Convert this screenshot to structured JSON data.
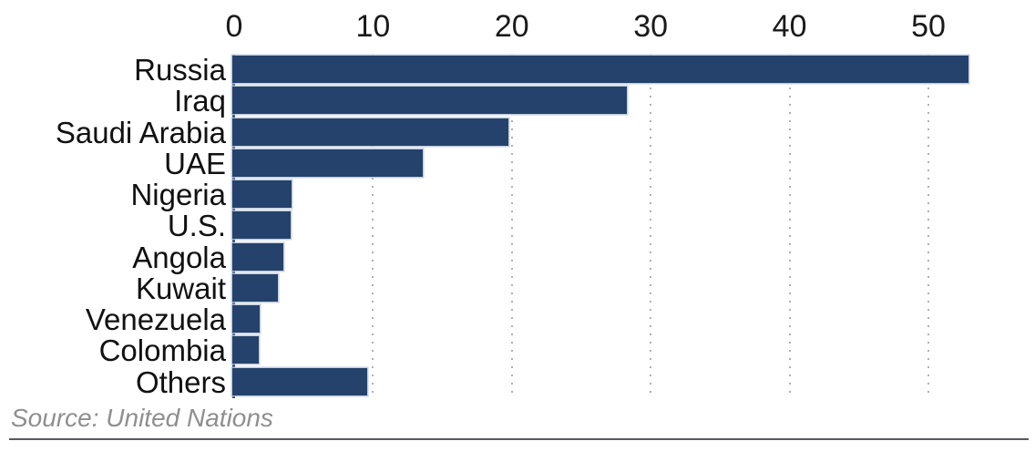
{
  "chart_data": {
    "type": "bar",
    "orientation": "horizontal",
    "title": "",
    "xlabel": "",
    "ylabel": "",
    "categories": [
      "Russia",
      "Iraq",
      "Saudi Arabia",
      "UAE",
      "Nigeria",
      "U.S.",
      "Angola",
      "Kuwait",
      "Venezuela",
      "Colombia",
      "Others"
    ],
    "values": [
      52.8,
      28.2,
      19.7,
      13.5,
      4.1,
      4.0,
      3.5,
      3.1,
      1.8,
      1.7,
      9.5
    ],
    "x_ticks": [
      0,
      10,
      20,
      30,
      40,
      50
    ],
    "xlim": [
      0,
      57.5
    ],
    "grid": "vertical-dotted",
    "legend": "none",
    "bar_color": "#24426B",
    "grid_color": "#b0b0b0",
    "axis_color": "#24426B",
    "source": "Source: United Nations"
  }
}
